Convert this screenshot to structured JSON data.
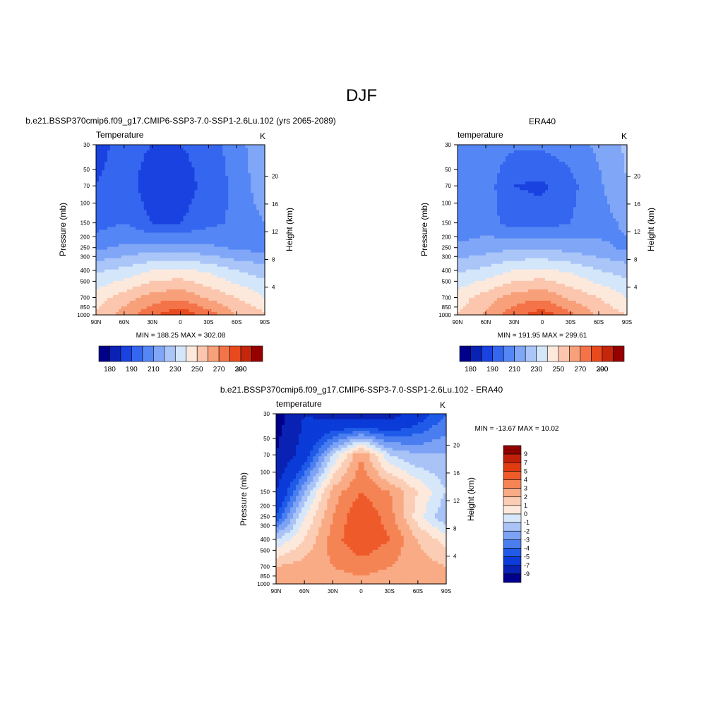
{
  "figure_title": "DJF",
  "chart_data": [
    {
      "type": "heatmap",
      "header": "b.e21.BSSP370cmip6.f09_g17.CMIP6-SSP3-7.0-SSP1-2.6Lu.102 (yrs 2065-2089)",
      "left_title": "Temperature",
      "units": "K",
      "ylabel": "Pressure (mb)",
      "y2label": "Height (km)",
      "x_ticks": [
        "90N",
        "60N",
        "30N",
        "0",
        "30S",
        "60S",
        "90S"
      ],
      "y_ticks": [
        30,
        50,
        70,
        100,
        150,
        200,
        250,
        300,
        400,
        500,
        700,
        850,
        1000
      ],
      "height_ticks": [
        4,
        8,
        12,
        16,
        20
      ],
      "stats": "MIN = 188.25  MAX = 302.08",
      "levels": [
        180,
        190,
        200,
        210,
        220,
        230,
        240,
        250,
        260,
        270,
        280,
        290,
        300
      ],
      "level_labels": [
        "180",
        "190",
        "210",
        "230",
        "250",
        "270",
        "290",
        "300"
      ],
      "colors": [
        "#00008c",
        "#0a22b4",
        "#1a42e0",
        "#3466f0",
        "#5586f5",
        "#80a6f7",
        "#aac5f7",
        "#d4e6fa",
        "#fde9dc",
        "#fbc6ad",
        "#f7a07a",
        "#f47348",
        "#e84a1e",
        "#c6260b",
        "#960000"
      ],
      "grid_x": [
        90,
        60,
        30,
        0,
        -30,
        -60,
        -90
      ],
      "grid_p": [
        30,
        70,
        150,
        250,
        400,
        700,
        1000
      ],
      "grid_values": [
        [
          195,
          205,
          200,
          200,
          205,
          215,
          230
        ],
        [
          200,
          207,
          192,
          193,
          205,
          212,
          228
        ],
        [
          205,
          210,
          200,
          200,
          207,
          212,
          220
        ],
        [
          218,
          222,
          225,
          225,
          222,
          218,
          216
        ],
        [
          238,
          243,
          250,
          252,
          248,
          240,
          235
        ],
        [
          255,
          265,
          275,
          278,
          268,
          260,
          250
        ],
        [
          262,
          275,
          288,
          298,
          285,
          270,
          262
        ]
      ]
    },
    {
      "type": "heatmap",
      "header": "ERA40",
      "left_title": "temperature",
      "units": "K",
      "ylabel": "Pressure (mb)",
      "y2label": "Height (km)",
      "x_ticks": [
        "90N",
        "60N",
        "30N",
        "0",
        "30S",
        "60S",
        "90S"
      ],
      "y_ticks": [
        30,
        50,
        70,
        100,
        150,
        200,
        250,
        300,
        400,
        500,
        700,
        850,
        1000
      ],
      "height_ticks": [
        4,
        8,
        12,
        16,
        20
      ],
      "stats": "MIN = 191.95  MAX = 299.61",
      "levels": [
        180,
        190,
        200,
        210,
        220,
        230,
        240,
        250,
        260,
        270,
        280,
        290,
        300
      ],
      "level_labels": [
        "180",
        "190",
        "210",
        "230",
        "250",
        "270",
        "290",
        "300"
      ],
      "colors": [
        "#00008c",
        "#0a22b4",
        "#1a42e0",
        "#3466f0",
        "#5586f5",
        "#80a6f7",
        "#aac5f7",
        "#d4e6fa",
        "#fde9dc",
        "#fbc6ad",
        "#f7a07a",
        "#f47348",
        "#e84a1e",
        "#c6260b",
        "#960000"
      ],
      "grid_x": [
        90,
        60,
        30,
        0,
        -30,
        -60,
        -90
      ],
      "grid_p": [
        30,
        70,
        150,
        250,
        400,
        700,
        1000
      ],
      "grid_values": [
        [
          212,
          215,
          212,
          212,
          215,
          222,
          232
        ],
        [
          212,
          215,
          200,
          198,
          207,
          218,
          230
        ],
        [
          212,
          215,
          205,
          205,
          210,
          216,
          222
        ],
        [
          222,
          225,
          228,
          228,
          226,
          222,
          218
        ],
        [
          238,
          243,
          250,
          252,
          248,
          240,
          236
        ],
        [
          255,
          265,
          275,
          278,
          268,
          260,
          250
        ],
        [
          260,
          272,
          286,
          296,
          283,
          268,
          260
        ]
      ]
    },
    {
      "type": "heatmap",
      "header": "b.e21.BSSP370cmip6.f09_g17.CMIP6-SSP3-7.0-SSP1-2.6Lu.102 - ERA40",
      "left_title": "temperature",
      "units": "K",
      "ylabel": "Pressure (mb)",
      "y2label": "Height (km)",
      "x_ticks": [
        "90N",
        "60N",
        "30N",
        "0",
        "30S",
        "60S",
        "90S"
      ],
      "y_ticks": [
        30,
        50,
        70,
        100,
        150,
        200,
        250,
        300,
        400,
        500,
        700,
        850,
        1000
      ],
      "height_ticks": [
        4,
        8,
        12,
        16,
        20
      ],
      "stats": "MIN = -13.67  MAX =  10.02",
      "levels": [
        -9,
        -7,
        -5,
        -4,
        -3,
        -2,
        -1,
        0,
        1,
        2,
        3,
        4,
        5,
        7,
        9
      ],
      "level_labels": [
        "9",
        "7",
        "5",
        "4",
        "3",
        "2",
        "1",
        "0",
        "-1",
        "-2",
        "-3",
        "-4",
        "-5",
        "-7",
        "-9"
      ],
      "colors": [
        "#00008c",
        "#0a22b4",
        "#0b3bd8",
        "#1f5be8",
        "#4a7ef0",
        "#7ca2f5",
        "#a9c3f6",
        "#d6e7fa",
        "#fde9dc",
        "#fbcdb4",
        "#f9ab85",
        "#f58455",
        "#ef5a2a",
        "#e03a10",
        "#c02008",
        "#8c0000"
      ],
      "grid_x": [
        90,
        60,
        30,
        0,
        -30,
        -60,
        -90
      ],
      "grid_p": [
        30,
        70,
        150,
        250,
        400,
        700,
        1000
      ],
      "grid_values": [
        [
          -10,
          -7,
          -8,
          -9,
          -8,
          -6,
          -4
        ],
        [
          -9,
          -6,
          -1,
          3,
          -1,
          -2,
          -2
        ],
        [
          -7,
          -2,
          2.5,
          4,
          3,
          1,
          -1
        ],
        [
          -5,
          0,
          3,
          5,
          3.5,
          0.5,
          -2
        ],
        [
          -1,
          1,
          3.5,
          5,
          4,
          2,
          0.5
        ],
        [
          2,
          2.5,
          3,
          3.5,
          3,
          2.5,
          2
        ],
        [
          3,
          2.5,
          2.5,
          2.5,
          2.5,
          2,
          2
        ]
      ]
    }
  ]
}
